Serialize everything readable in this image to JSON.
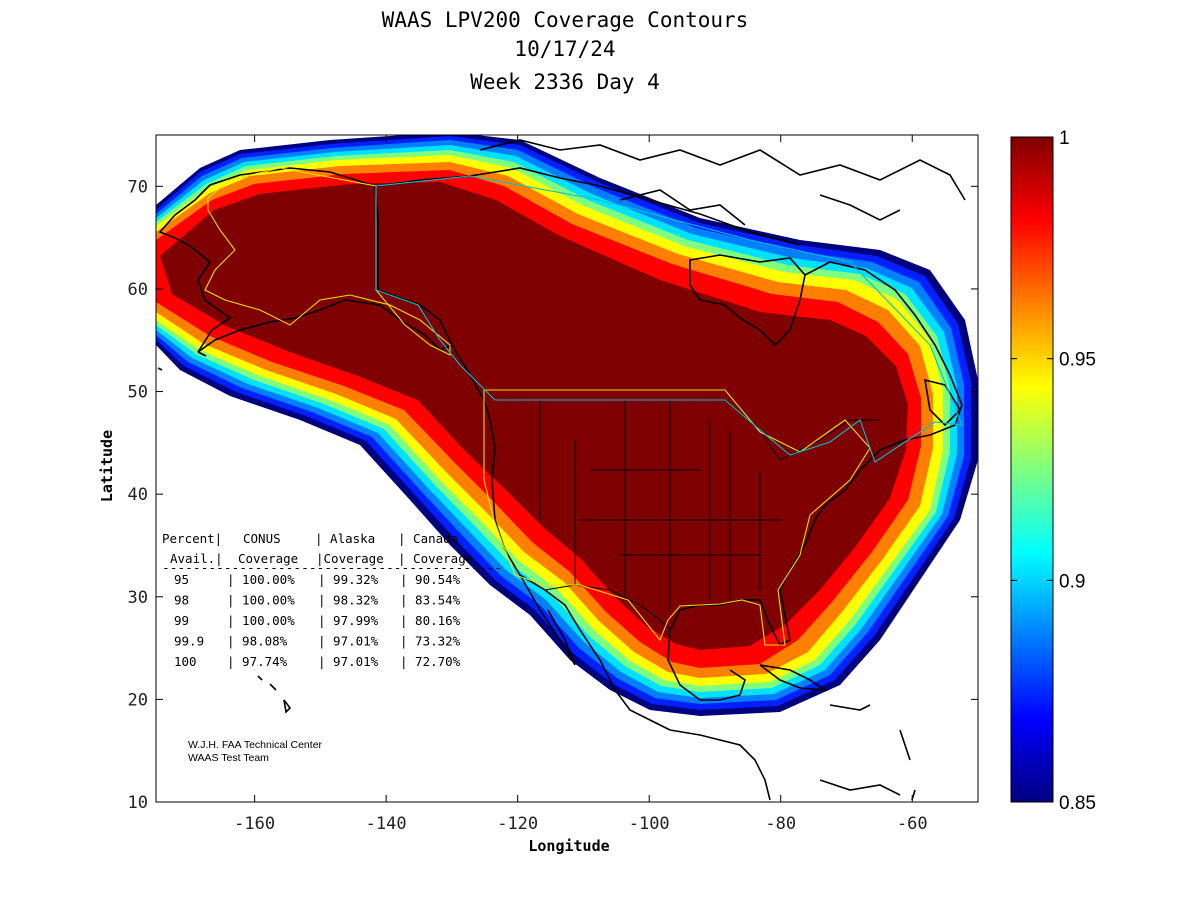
{
  "title_lines": [
    "WAAS LPV200 Coverage Contours",
    "10/17/24",
    "Week 2336 Day 4"
  ],
  "chart_data": {
    "type": "heatmap",
    "title": "WAAS LPV200 Coverage Contours",
    "subtitle": [
      "10/17/24",
      "Week 2336 Day 4"
    ],
    "xlabel": "Longitude",
    "ylabel": "Latitude",
    "xlim": [
      -175,
      -50
    ],
    "ylim": [
      10,
      75
    ],
    "xticks": [
      -160,
      -140,
      -120,
      -100,
      -80,
      -60
    ],
    "yticks": [
      10,
      20,
      30,
      40,
      50,
      60,
      70
    ],
    "xtick_labels": [
      "-160",
      "-140",
      "-120",
      "-100",
      "-80",
      "-60"
    ],
    "ytick_labels": [
      "10",
      "20",
      "30",
      "40",
      "50",
      "60",
      "70"
    ],
    "colorbar": {
      "range": [
        0.85,
        1
      ],
      "ticks": [
        0.85,
        0.9,
        0.95,
        1
      ],
      "tick_labels": [
        "0.85",
        "0.9",
        "0.95",
        "1"
      ],
      "colormap": "jet"
    },
    "availability_table": {
      "header_row1": [
        "Percent|",
        "CONUS",
        "| Alaska",
        "| Canada"
      ],
      "header_row2": [
        "Avail.|",
        "Coverage",
        "|Coverage",
        "| Coverage"
      ],
      "separator": "--------------------------------------------",
      "rows": [
        {
          "percent": "95",
          "conus": "100.00%",
          "alaska": "99.32%",
          "canada": "90.54%"
        },
        {
          "percent": "98",
          "conus": "100.00%",
          "alaska": "98.32%",
          "canada": "83.54%"
        },
        {
          "percent": "99",
          "conus": "100.00%",
          "alaska": "97.99%",
          "canada": "80.16%"
        },
        {
          "percent": "99.9",
          "conus": "98.08%",
          "alaska": "97.01%",
          "canada": "73.32%"
        },
        {
          "percent": "100",
          "conus": "97.74%",
          "alaska": "97.01%",
          "canada": "72.70%"
        }
      ]
    },
    "credit": [
      "W.J.H. FAA Technical Center",
      "WAAS Test Team"
    ]
  },
  "colors": {
    "jet_stops": [
      "#00007f",
      "#0000ff",
      "#007fff",
      "#00ffff",
      "#7fff7f",
      "#ffff00",
      "#ff7f00",
      "#ff0000",
      "#7f0000"
    ],
    "coast": "#000000",
    "boundary_yellow": "#e8e000",
    "boundary_cyan": "#00c0d0"
  }
}
